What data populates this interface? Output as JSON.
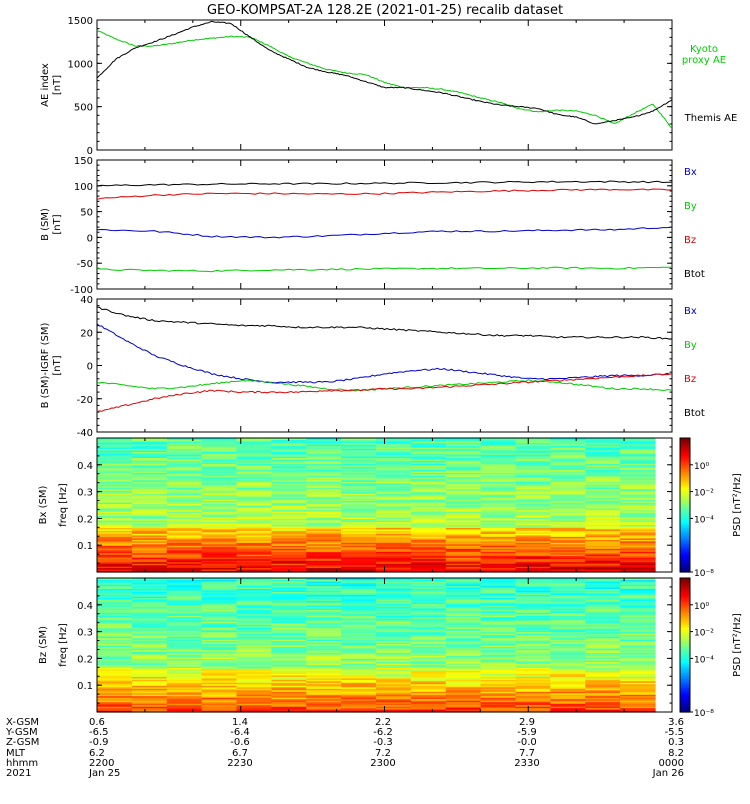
{
  "title": "GEO-KOMPSAT-2A 128.2E (2021-01-25) recalib dataset",
  "colors": {
    "black": "#000000",
    "red": "#dd0000",
    "green": "#00cc00",
    "blue": "#0000cc"
  },
  "chart_data": [
    {
      "type": "line",
      "ylabel": "AE index [nT]",
      "ylim": [
        0,
        1500
      ],
      "yticks": [
        "0",
        "500",
        "1000",
        "1500"
      ],
      "x_hours": [
        22.0,
        22.033,
        22.067,
        22.1,
        22.133,
        22.167,
        22.2,
        22.233,
        22.267,
        22.3,
        22.333,
        22.367,
        22.4,
        22.433,
        22.467,
        22.5,
        22.533,
        22.567,
        22.6,
        22.633,
        22.667,
        22.7,
        22.733,
        22.767,
        22.8,
        22.833,
        22.867,
        22.9,
        22.933,
        22.967,
        23.0
      ],
      "series": [
        {
          "name": "Kyoto proxy AE",
          "color": "green",
          "values": [
            1380,
            1280,
            1200,
            1200,
            1230,
            1270,
            1290,
            1310,
            1300,
            1200,
            1080,
            1000,
            930,
            890,
            870,
            780,
            720,
            720,
            700,
            660,
            600,
            550,
            480,
            440,
            460,
            450,
            400,
            300,
            420,
            530,
            250
          ]
        },
        {
          "name": "Themis AE",
          "color": "black",
          "values": [
            830,
            1050,
            1180,
            1250,
            1330,
            1420,
            1480,
            1460,
            1300,
            1150,
            1050,
            950,
            900,
            860,
            790,
            720,
            720,
            690,
            660,
            610,
            560,
            520,
            500,
            480,
            410,
            380,
            300,
            340,
            380,
            450,
            580
          ]
        }
      ],
      "legend": [
        "Kyoto proxy AE",
        "Themis AE"
      ]
    },
    {
      "type": "line",
      "ylabel": "B (SM) [nT]",
      "ylim": [
        -100,
        150
      ],
      "yticks": [
        "-100",
        "-50",
        "0",
        "50",
        "100",
        "150"
      ],
      "x_hours": [
        22.0,
        22.1,
        22.2,
        22.3,
        22.4,
        22.5,
        22.6,
        22.7,
        22.8,
        22.9,
        23.0
      ],
      "series": [
        {
          "name": "Bx",
          "color": "blue",
          "values": [
            15,
            12,
            2,
            0,
            3,
            8,
            12,
            12,
            14,
            15,
            20
          ]
        },
        {
          "name": "By",
          "color": "green",
          "values": [
            -62,
            -64,
            -65,
            -63,
            -62,
            -61,
            -60,
            -60,
            -59,
            -60,
            -58
          ]
        },
        {
          "name": "Bz",
          "color": "red",
          "values": [
            75,
            82,
            85,
            85,
            84,
            85,
            88,
            90,
            92,
            93,
            92
          ]
        },
        {
          "name": "Btot",
          "color": "black",
          "values": [
            100,
            102,
            103,
            104,
            104,
            105,
            106,
            107,
            108,
            108,
            107
          ]
        }
      ],
      "legend": [
        "Bx",
        "By",
        "Bz",
        "Btot"
      ]
    },
    {
      "type": "line",
      "ylabel": "B (SM)-IGRF (SM) [nT]",
      "ylim": [
        -40,
        40
      ],
      "yticks": [
        "-40",
        "-20",
        "0",
        "20",
        "40"
      ],
      "x_hours": [
        22.0,
        22.05,
        22.1,
        22.15,
        22.2,
        22.25,
        22.3,
        22.35,
        22.4,
        22.45,
        22.5,
        22.55,
        22.6,
        22.65,
        22.7,
        22.75,
        22.8,
        22.85,
        22.9,
        22.95,
        23.0
      ],
      "series": [
        {
          "name": "Bx",
          "color": "blue",
          "values": [
            25,
            15,
            6,
            0,
            -5,
            -8,
            -10,
            -10,
            -10,
            -8,
            -5,
            -3,
            -2,
            -4,
            -6,
            -8,
            -8,
            -7,
            -6,
            -6,
            -5
          ]
        },
        {
          "name": "By",
          "color": "green",
          "values": [
            -10,
            -12,
            -14,
            -13,
            -11,
            -9,
            -10,
            -12,
            -14,
            -15,
            -14,
            -13,
            -12,
            -11,
            -10,
            -9,
            -10,
            -12,
            -14,
            -14,
            -15
          ]
        },
        {
          "name": "Bz",
          "color": "red",
          "values": [
            -28,
            -24,
            -20,
            -17,
            -15,
            -16,
            -16,
            -16,
            -15,
            -15,
            -14,
            -14,
            -13,
            -12,
            -11,
            -10,
            -9,
            -8,
            -7,
            -6,
            -5
          ]
        },
        {
          "name": "Btot",
          "color": "black",
          "values": [
            35,
            30,
            27,
            26,
            25,
            24,
            24,
            23,
            23,
            23,
            22,
            21,
            20,
            19,
            18,
            18,
            17,
            17,
            17,
            17,
            16
          ]
        }
      ],
      "legend": [
        "Bx",
        "By",
        "Bz",
        "Btot"
      ]
    },
    {
      "type": "heatmap",
      "ylabel": "Bx (SM) freq [Hz]",
      "ylim": [
        0,
        0.5
      ],
      "yticks": [
        "0.1",
        "0.2",
        "0.3",
        "0.4"
      ],
      "colorbar_label": "PSD [nT²/Hz]",
      "colorbar_ticks": [
        "10⁻⁸",
        "10⁻⁴",
        "10⁻²",
        "10⁰"
      ],
      "colorbar_range_log": [
        -8,
        2
      ],
      "low_freq_log_psd": 1.0,
      "high_freq_log_psd": -2.5
    },
    {
      "type": "heatmap",
      "ylabel": "Bz (SM) freq [Hz]",
      "ylim": [
        0,
        0.5
      ],
      "yticks": [
        "0.1",
        "0.2",
        "0.3",
        "0.4"
      ],
      "colorbar_label": "PSD [nT²/Hz]",
      "colorbar_ticks": [
        "10⁻⁸",
        "10⁻⁴",
        "10⁻²",
        "10⁰"
      ],
      "colorbar_range_log": [
        -8,
        2
      ],
      "low_freq_log_psd": 0.2,
      "high_freq_log_psd": -2.8
    }
  ],
  "ephemeris": {
    "labels": [
      "X-GSM",
      "Y-GSM",
      "Z-GSM",
      "MLT",
      "hhmm",
      "2021"
    ],
    "columns": [
      [
        "0.6",
        "-6.5",
        "-0.9",
        "6.2",
        "2200",
        "Jan 25"
      ],
      [
        "1.4",
        "-6.4",
        "-0.6",
        "6.7",
        "2230",
        ""
      ],
      [
        "2.2",
        "-6.2",
        "-0.3",
        "7.2",
        "2300",
        ""
      ],
      [
        "2.9",
        "-5.9",
        "-0.0",
        "7.7",
        "2330",
        ""
      ],
      [
        "3.6",
        "-5.5",
        "0.3",
        "8.2",
        "0000",
        "Jan 26"
      ]
    ]
  }
}
